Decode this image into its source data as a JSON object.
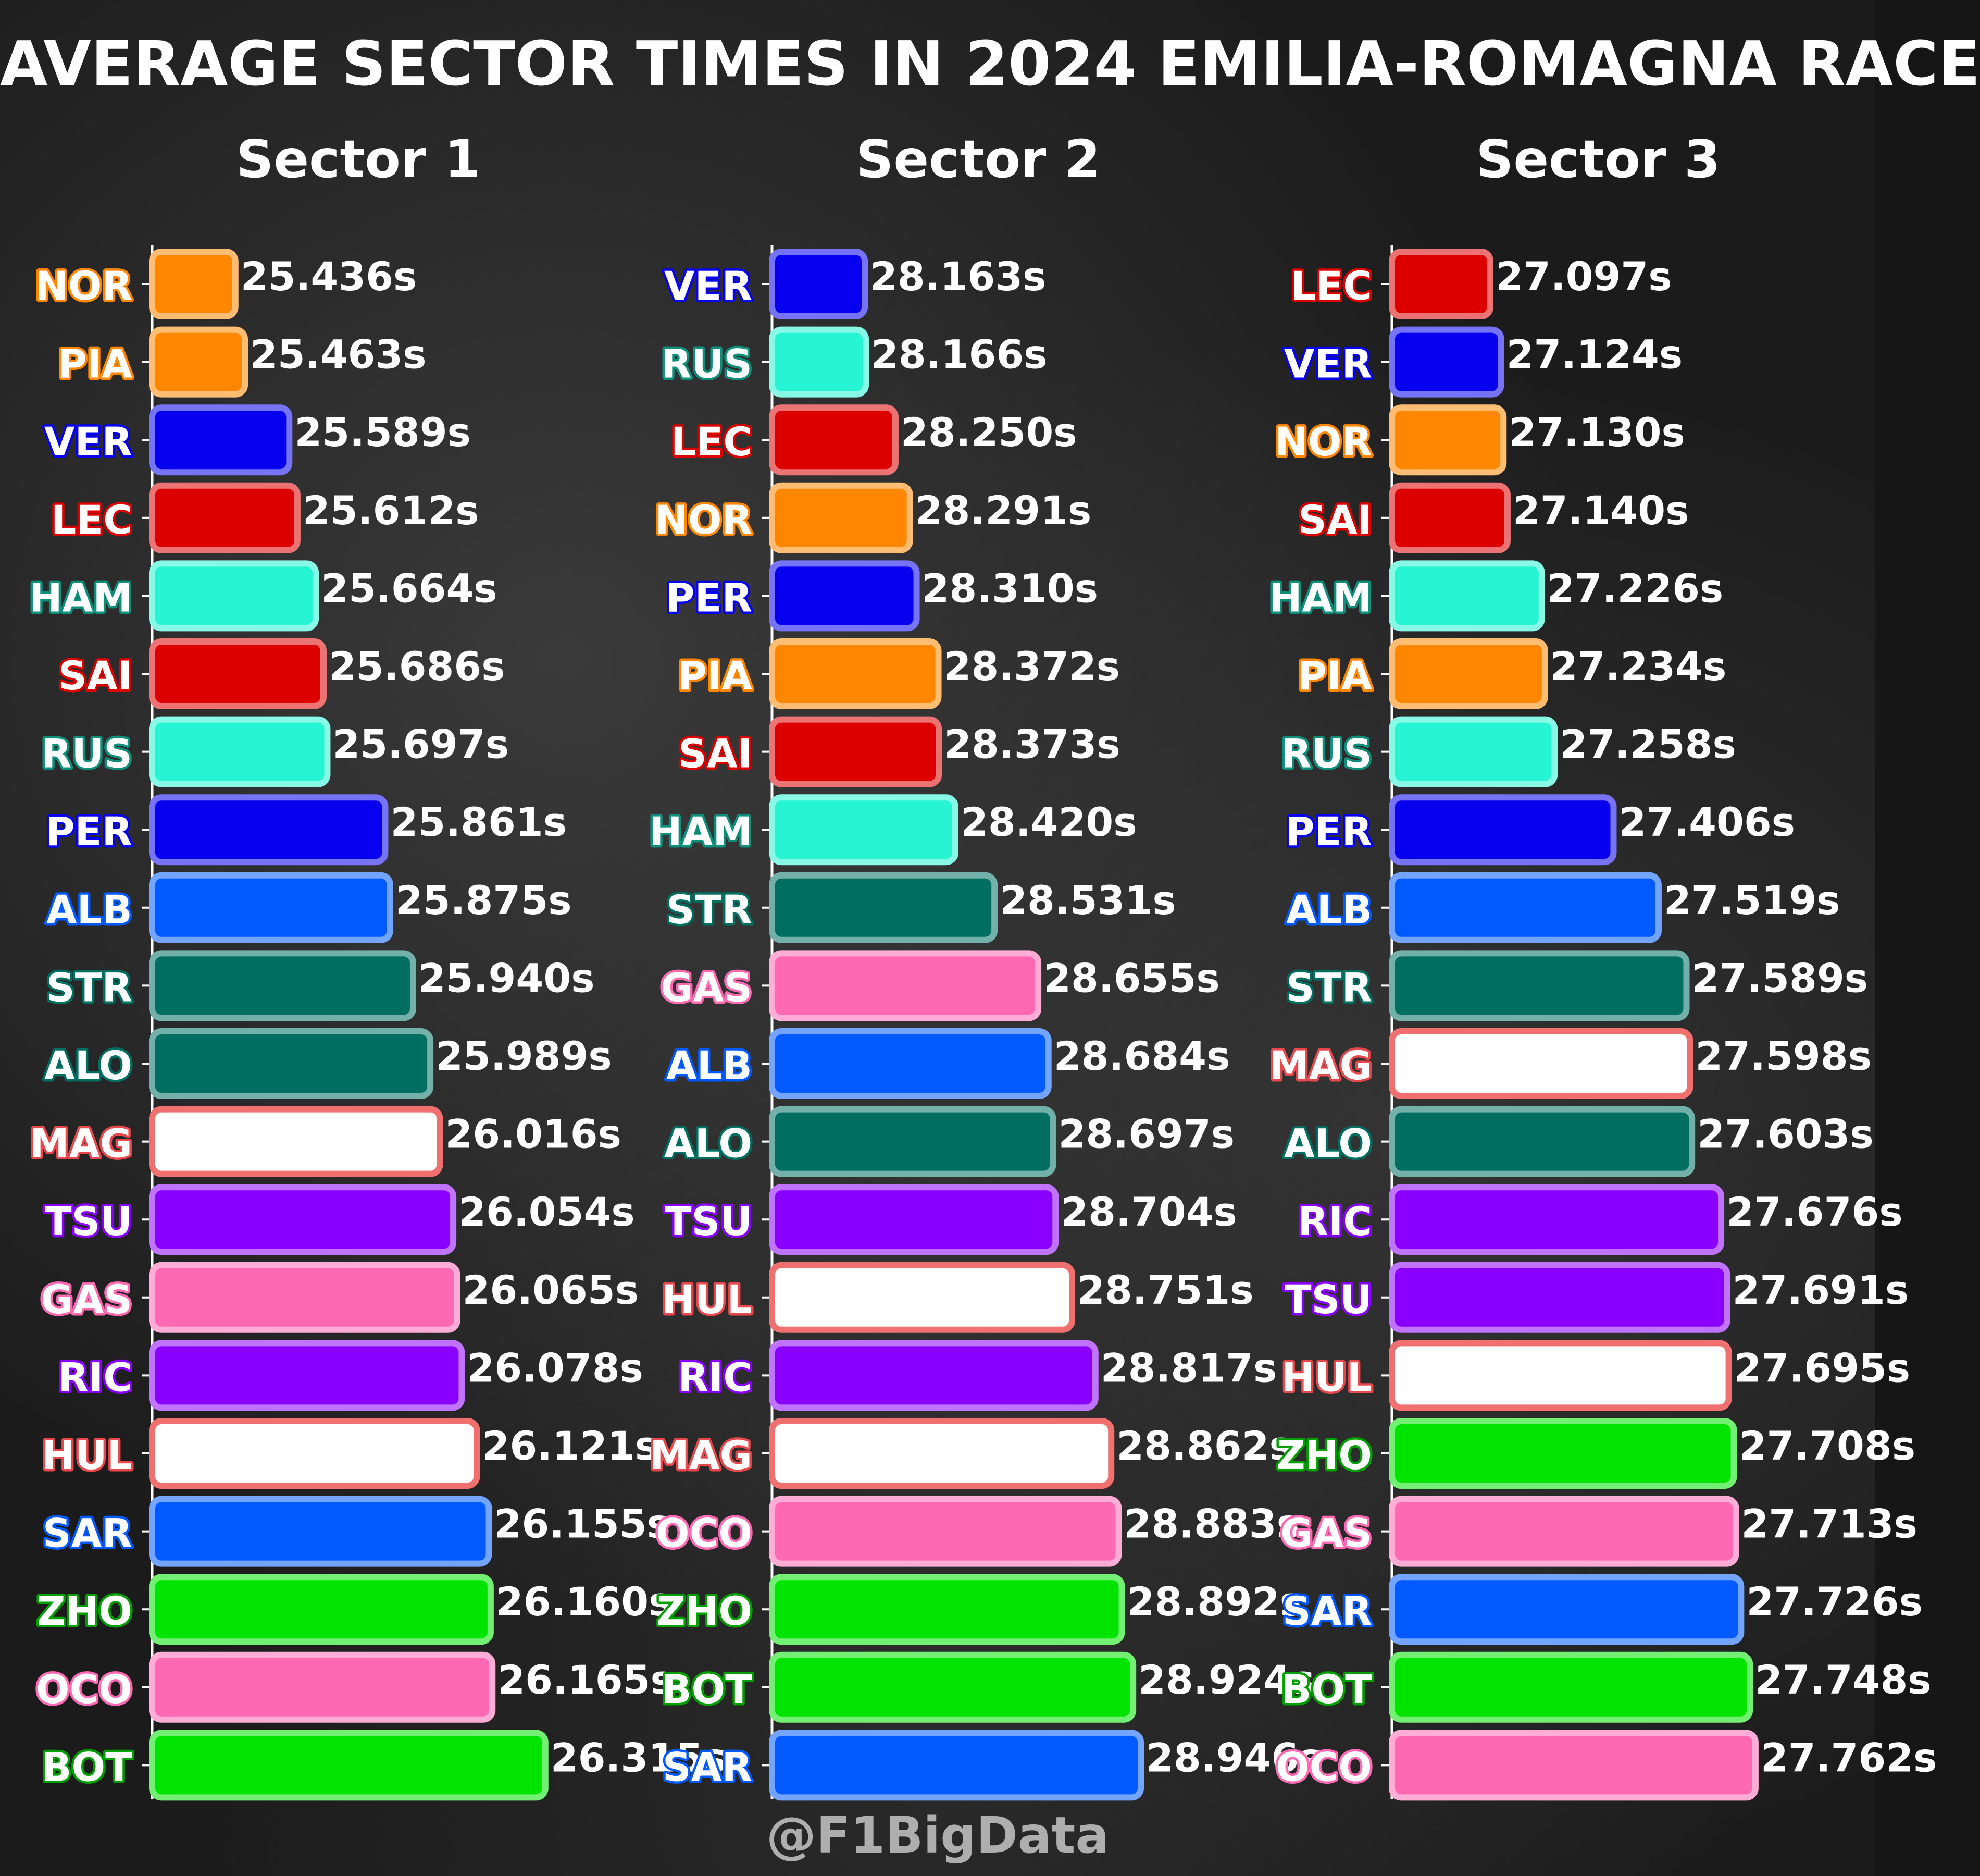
{
  "title": "AVERAGE SECTOR TIMES IN 2024 EMILIA-ROMAGNA RACE",
  "watermark": "@F1BigData",
  "value_suffix": "s",
  "team_colors": {
    "NOR": "#FF8700",
    "PIA": "#FF8700",
    "VER": "#0600EF",
    "PER": "#0600EF",
    "LEC": "#DC0000",
    "SAI": "#DC0000",
    "HAM": "#27F4D2",
    "RUS": "#27F4D2",
    "ALB": "#005AFF",
    "SAR": "#005AFF",
    "STR": "#006F62",
    "ALO": "#006F62",
    "MAG": "#FFFFFF",
    "HUL": "#FFFFFF",
    "TSU": "#8A00FF",
    "RIC": "#8A00FF",
    "GAS": "#FF69B4",
    "OCO": "#FF69B4",
    "ZHO": "#00E400",
    "BOT": "#00E400"
  },
  "label_outline_colors": {
    "NOR": "#FF8700",
    "PIA": "#FF8700",
    "VER": "#0600EF",
    "PER": "#0600EF",
    "LEC": "#DC0000",
    "SAI": "#DC0000",
    "HAM": "#0E8F7C",
    "RUS": "#0E8F7C",
    "ALB": "#005AFF",
    "SAR": "#005AFF",
    "STR": "#006F62",
    "ALO": "#006F62",
    "MAG": "#E8474C",
    "HUL": "#E8474C",
    "TSU": "#8A00FF",
    "RIC": "#8A00FF",
    "GAS": "#FF69B4",
    "OCO": "#FF69B4",
    "ZHO": "#00A000",
    "BOT": "#00A000"
  },
  "bar_border_colors": {
    "MAG": "#F07070",
    "HUL": "#F07070"
  },
  "chart_data": [
    {
      "type": "bar",
      "orientation": "horizontal",
      "title": "Sector 1",
      "xlim": [
        25.2,
        26.5
      ],
      "categories": [
        "NOR",
        "PIA",
        "VER",
        "LEC",
        "HAM",
        "SAI",
        "RUS",
        "PER",
        "ALB",
        "STR",
        "ALO",
        "MAG",
        "TSU",
        "GAS",
        "RIC",
        "HUL",
        "SAR",
        "ZHO",
        "OCO",
        "BOT"
      ],
      "values": [
        25.436,
        25.463,
        25.589,
        25.612,
        25.664,
        25.686,
        25.697,
        25.861,
        25.875,
        25.94,
        25.989,
        26.016,
        26.054,
        26.065,
        26.078,
        26.121,
        26.155,
        26.16,
        26.165,
        26.315
      ],
      "value_labels": [
        "25.436s",
        "25.463s",
        "25.589s",
        "25.612s",
        "25.664s",
        "25.686s",
        "25.697s",
        "25.861s",
        "25.875s",
        "25.940s",
        "25.989s",
        "26.016s",
        "26.054s",
        "26.065s",
        "26.078s",
        "26.121s",
        "26.155s",
        "26.160s",
        "26.165s",
        "26.315s"
      ]
    },
    {
      "type": "bar",
      "orientation": "horizontal",
      "title": "Sector 2",
      "xlim": [
        27.9,
        29.2
      ],
      "categories": [
        "VER",
        "RUS",
        "LEC",
        "NOR",
        "PER",
        "PIA",
        "SAI",
        "HAM",
        "STR",
        "GAS",
        "ALB",
        "ALO",
        "TSU",
        "HUL",
        "RIC",
        "MAG",
        "OCO",
        "ZHO",
        "BOT",
        "SAR"
      ],
      "values": [
        28.163,
        28.166,
        28.25,
        28.291,
        28.31,
        28.372,
        28.373,
        28.42,
        28.531,
        28.655,
        28.684,
        28.697,
        28.704,
        28.751,
        28.817,
        28.862,
        28.883,
        28.892,
        28.924,
        28.946
      ],
      "value_labels": [
        "28.163s",
        "28.166s",
        "28.250s",
        "28.291s",
        "28.310s",
        "28.372s",
        "28.373s",
        "28.420s",
        "28.531s",
        "28.655s",
        "28.684s",
        "28.697s",
        "28.704s",
        "28.751s",
        "28.817s",
        "28.862s",
        "28.883s",
        "28.892s",
        "28.924s",
        "28.946s"
      ]
    },
    {
      "type": "bar",
      "orientation": "horizontal",
      "title": "Sector 3",
      "xlim": [
        26.85,
        28.0
      ],
      "categories": [
        "LEC",
        "VER",
        "NOR",
        "SAI",
        "HAM",
        "PIA",
        "RUS",
        "PER",
        "ALB",
        "STR",
        "MAG",
        "ALO",
        "RIC",
        "TSU",
        "HUL",
        "ZHO",
        "GAS",
        "SAR",
        "BOT",
        "OCO"
      ],
      "values": [
        27.097,
        27.124,
        27.13,
        27.14,
        27.226,
        27.234,
        27.258,
        27.406,
        27.519,
        27.589,
        27.598,
        27.603,
        27.676,
        27.691,
        27.695,
        27.708,
        27.713,
        27.726,
        27.748,
        27.762
      ],
      "value_labels": [
        "27.097s",
        "27.124s",
        "27.130s",
        "27.140s",
        "27.226s",
        "27.234s",
        "27.258s",
        "27.406s",
        "27.519s",
        "27.589s",
        "27.598s",
        "27.603s",
        "27.676s",
        "27.691s",
        "27.695s",
        "27.708s",
        "27.713s",
        "27.726s",
        "27.748s",
        "27.762s"
      ]
    }
  ]
}
